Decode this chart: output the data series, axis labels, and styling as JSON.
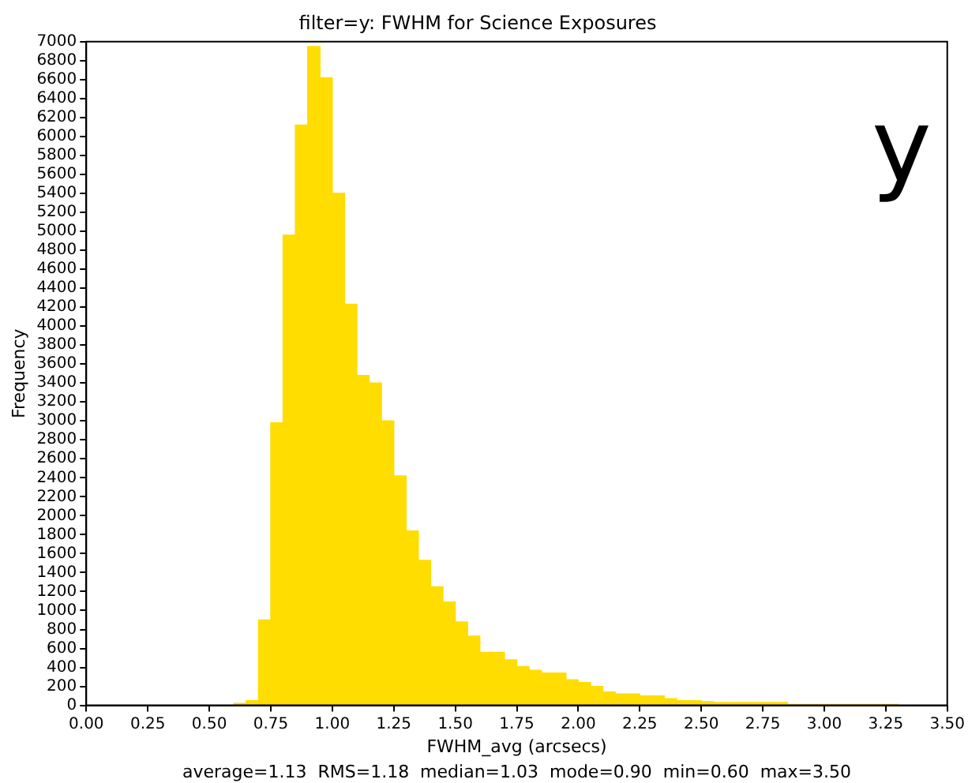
{
  "chart_data": {
    "type": "histogram",
    "title": "filter=y: FWHM for Science Exposures",
    "xlabel": "FWHM_avg (arcsecs)",
    "ylabel": "Frequency",
    "bins": [
      0.6,
      0.65,
      0.7,
      0.75,
      0.8,
      0.85,
      0.9,
      0.95,
      1.0,
      1.05,
      1.1,
      1.15,
      1.2,
      1.25,
      1.3,
      1.35,
      1.4,
      1.45,
      1.5,
      1.55,
      1.6,
      1.65,
      1.7,
      1.75,
      1.8,
      1.85,
      1.9,
      1.95,
      2.0,
      2.05,
      2.1,
      2.15,
      2.2,
      2.25,
      2.3,
      2.35,
      2.4,
      2.45,
      2.5,
      2.55,
      2.6,
      2.65,
      2.7,
      2.75,
      2.8,
      2.85,
      2.9,
      2.95,
      3.0,
      3.05,
      3.1,
      3.15,
      3.2,
      3.25,
      3.3
    ],
    "values": [
      20,
      50,
      900,
      2980,
      4960,
      6120,
      6950,
      6620,
      5400,
      4230,
      3480,
      3400,
      3000,
      2420,
      1840,
      1530,
      1250,
      1090,
      880,
      730,
      560,
      560,
      480,
      410,
      370,
      340,
      340,
      270,
      240,
      200,
      140,
      120,
      120,
      100,
      100,
      70,
      50,
      50,
      40,
      30,
      30,
      30,
      30,
      30,
      30,
      10,
      10,
      10,
      10,
      10,
      10,
      10,
      10,
      10
    ],
    "color": "#ffdd00",
    "xlim": [
      0,
      3.5
    ],
    "xticks": [
      {
        "value": 0,
        "label": "0.00"
      },
      0.25,
      {
        "value": 0.5,
        "label": "0.50"
      },
      0.75,
      {
        "value": 1,
        "label": "1.00"
      },
      1.25,
      {
        "value": 1.5,
        "label": "1.50"
      },
      1.75,
      {
        "value": 2,
        "label": "2.00"
      },
      2.25,
      {
        "value": 2.5,
        "label": "2.50"
      },
      2.75,
      {
        "value": 3,
        "label": "3.00"
      },
      3.25,
      {
        "value": 3.5,
        "label": "3.50"
      }
    ],
    "ylim": [
      0,
      7000
    ],
    "yticks": [
      0,
      200,
      400,
      600,
      800,
      1000,
      1200,
      1400,
      1600,
      1800,
      2000,
      2200,
      2400,
      2600,
      2800,
      3000,
      3200,
      3400,
      3600,
      3800,
      4000,
      4200,
      4400,
      4600,
      4800,
      5000,
      5200,
      5400,
      5600,
      5800,
      6000,
      6200,
      6400,
      6600,
      6800,
      7000
    ],
    "annotations": [
      "y",
      "average=1.13  RMS=1.18  median=1.03  mode=0.90  min=0.60  max=3.50"
    ]
  }
}
